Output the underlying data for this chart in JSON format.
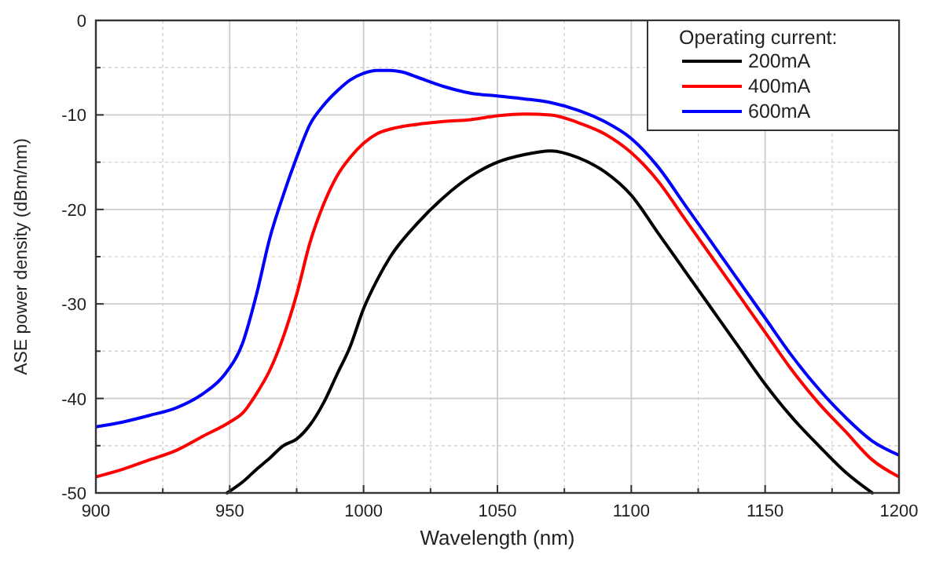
{
  "chart_data": {
    "type": "line",
    "xlabel": "Wavelength (nm)",
    "ylabel": "ASE power density (dBm/nm)",
    "legend_title": "Operating current:",
    "legend": "top right",
    "grid": true,
    "line_style": "solid",
    "marker": "none",
    "xlim": [
      900,
      1200
    ],
    "ylim": [
      -50,
      0
    ],
    "xticks": [
      900,
      {
        "value": 925,
        "label": null
      },
      950,
      {
        "value": 975,
        "label": null
      },
      1000,
      {
        "value": 1025,
        "label": null
      },
      1050,
      {
        "value": 1075,
        "label": null
      },
      1100,
      {
        "value": 1125,
        "label": null
      },
      1150,
      {
        "value": 1175,
        "label": null
      },
      1200
    ],
    "yticks": [
      -50,
      {
        "value": -45,
        "label": null
      },
      -40,
      {
        "value": -35,
        "label": null
      },
      -30,
      {
        "value": -25,
        "label": null
      },
      -20,
      {
        "value": -15,
        "label": null
      },
      -10,
      {
        "value": -5,
        "label": null
      },
      0
    ],
    "series": [
      {
        "name": "200mA",
        "color": "#000000",
        "x": [
          949,
          955,
          960,
          965,
          970,
          975,
          980,
          985,
          990,
          995,
          1000,
          1005,
          1010,
          1020,
          1030,
          1040,
          1050,
          1060,
          1070,
          1080,
          1090,
          1100,
          1110,
          1120,
          1130,
          1140,
          1150,
          1160,
          1170,
          1180,
          1190
        ],
        "values": [
          -50,
          -48.8,
          -47.5,
          -46.3,
          -45,
          -44.3,
          -42.8,
          -40.5,
          -37.5,
          -34.5,
          -30.5,
          -27.5,
          -25,
          -21.5,
          -18.7,
          -16.5,
          -15,
          -14.2,
          -13.8,
          -14.5,
          -16,
          -18.5,
          -22.5,
          -26.5,
          -30.5,
          -34.5,
          -38.5,
          -42,
          -45,
          -47.8,
          -50
        ]
      },
      {
        "name": "400mA",
        "color": "#ff0000",
        "x": [
          900,
          910,
          920,
          930,
          940,
          950,
          955,
          960,
          965,
          970,
          975,
          980,
          985,
          990,
          995,
          1000,
          1005,
          1010,
          1020,
          1030,
          1040,
          1050,
          1060,
          1070,
          1080,
          1090,
          1100,
          1110,
          1120,
          1130,
          1140,
          1150,
          1160,
          1170,
          1180,
          1190,
          1200
        ],
        "values": [
          -48.3,
          -47.5,
          -46.5,
          -45.5,
          -44,
          -42.5,
          -41.5,
          -39.5,
          -37,
          -33.5,
          -29,
          -23.5,
          -19.5,
          -16.5,
          -14.5,
          -13,
          -12,
          -11.5,
          -11,
          -10.7,
          -10.5,
          -10.1,
          -9.9,
          -10,
          -10.8,
          -12,
          -14,
          -17,
          -21,
          -25,
          -29,
          -33,
          -37,
          -40.5,
          -43.5,
          -46.5,
          -48.3
        ]
      },
      {
        "name": "600mA",
        "color": "#0000ff",
        "x": [
          900,
          910,
          920,
          930,
          940,
          948,
          955,
          960,
          965,
          970,
          975,
          980,
          985,
          990,
          995,
          1000,
          1005,
          1010,
          1015,
          1020,
          1030,
          1040,
          1050,
          1060,
          1070,
          1080,
          1090,
          1100,
          1110,
          1120,
          1130,
          1140,
          1150,
          1160,
          1170,
          1180,
          1190,
          1200
        ],
        "values": [
          -43,
          -42.5,
          -41.8,
          -41,
          -39.5,
          -37.5,
          -34,
          -29,
          -23,
          -18.5,
          -14.5,
          -11,
          -9,
          -7.5,
          -6.3,
          -5.6,
          -5.3,
          -5.3,
          -5.5,
          -6,
          -7,
          -7.7,
          -8,
          -8.3,
          -8.7,
          -9.5,
          -10.7,
          -12.5,
          -15.5,
          -19.5,
          -23.5,
          -27.5,
          -31.5,
          -35.5,
          -39,
          -42,
          -44.5,
          -46
        ]
      }
    ]
  }
}
